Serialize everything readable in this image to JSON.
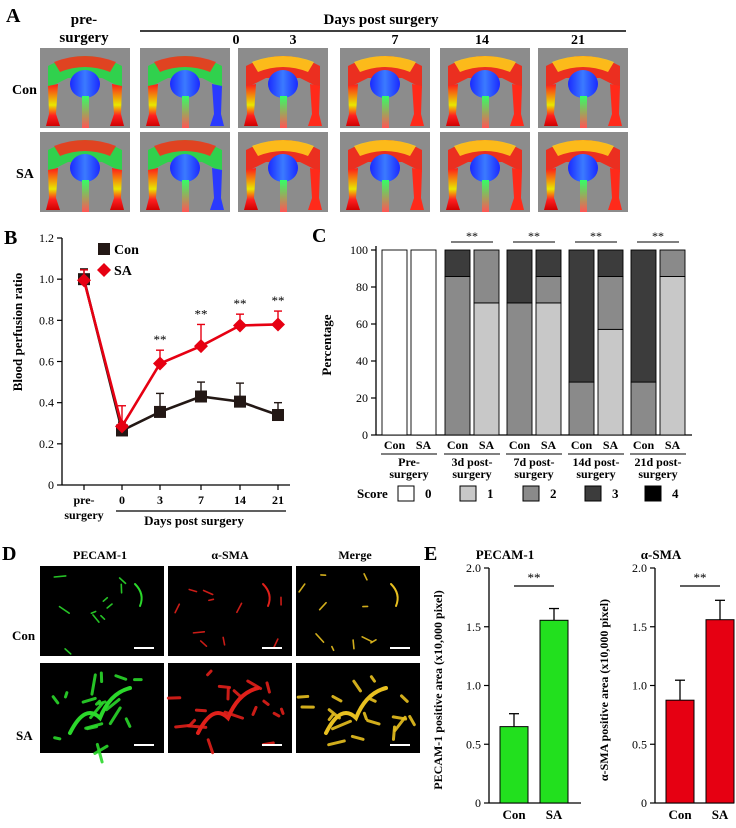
{
  "panel_labels": {
    "a": "A",
    "b": "B",
    "c": "C",
    "d": "D",
    "e": "E"
  },
  "panel_a": {
    "header_pre_line1": "pre-",
    "header_pre_line2": "surgery",
    "header_days": "Days post surgery",
    "days": [
      "0",
      "3",
      "7",
      "14",
      "21"
    ],
    "rows": [
      "Con",
      "SA"
    ]
  },
  "chart_data": [
    {
      "id": "B",
      "type": "line",
      "ylabel": "Blood perfusion ratio",
      "xlabel": "Days post surgery",
      "ylim": [
        0,
        1.2
      ],
      "yticks": [
        "0",
        "0.2",
        "0.4",
        "0.6",
        "0.8",
        "1.0",
        "1.2"
      ],
      "categories": [
        "pre-surgery",
        "0",
        "3",
        "7",
        "14",
        "21"
      ],
      "cat_line1": "pre-",
      "cat_line2": "surgery",
      "series": [
        {
          "name": "Con",
          "color": "#231815",
          "values": [
            1.0,
            0.265,
            0.355,
            0.43,
            0.405,
            0.34
          ],
          "err": [
            0.05,
            0.04,
            0.09,
            0.07,
            0.09,
            0.06
          ]
        },
        {
          "name": "SA",
          "color": "#e60012",
          "values": [
            0.995,
            0.285,
            0.59,
            0.675,
            0.775,
            0.78
          ],
          "err": [
            0.05,
            0.1,
            0.065,
            0.105,
            0.055,
            0.065
          ]
        }
      ],
      "annotations": [
        "**",
        "**",
        "**",
        "**"
      ],
      "legend": "top-right"
    },
    {
      "id": "C",
      "type": "bar",
      "ylabel": "Percentage",
      "ylim": [
        0,
        100
      ],
      "yticks": [
        "0",
        "20",
        "40",
        "60",
        "80",
        "100"
      ],
      "groups": [
        {
          "line1": "Pre-",
          "line2": "surgery",
          "bars": [
            {
              "label": "Con",
              "values": [
                100,
                0,
                0,
                0,
                0
              ]
            },
            {
              "label": "SA",
              "values": [
                100,
                0,
                0,
                0,
                0
              ]
            }
          ],
          "sig": ""
        },
        {
          "line1": "3d post-",
          "line2": "surgery",
          "bars": [
            {
              "label": "Con",
              "values": [
                0,
                0,
                85.7,
                14.3,
                0
              ]
            },
            {
              "label": "SA",
              "values": [
                0,
                71.4,
                28.6,
                0,
                0
              ]
            }
          ],
          "sig": "**"
        },
        {
          "line1": "7d post-",
          "line2": "surgery",
          "bars": [
            {
              "label": "Con",
              "values": [
                0,
                0,
                71.4,
                28.6,
                0
              ]
            },
            {
              "label": "SA",
              "values": [
                0,
                71.4,
                14.3,
                14.3,
                0
              ]
            }
          ],
          "sig": "**"
        },
        {
          "line1": "14d post-",
          "line2": "surgery",
          "bars": [
            {
              "label": "Con",
              "values": [
                0,
                0,
                28.6,
                71.4,
                0
              ]
            },
            {
              "label": "SA",
              "values": [
                0,
                57.1,
                28.6,
                14.3,
                0
              ]
            }
          ],
          "sig": "**"
        },
        {
          "line1": "21d post-",
          "line2": "surgery",
          "bars": [
            {
              "label": "Con",
              "values": [
                0,
                0,
                28.6,
                71.4,
                0
              ]
            },
            {
              "label": "SA",
              "values": [
                0,
                85.7,
                14.3,
                0,
                0
              ]
            }
          ],
          "sig": "**"
        }
      ],
      "score_label": "Score",
      "score_names": [
        "0",
        "1",
        "2",
        "3",
        "4"
      ],
      "score_colors": [
        "#ffffff",
        "#c8c8c8",
        "#8a8a8a",
        "#3c3c3c",
        "#000000"
      ],
      "legend": "bottom"
    },
    {
      "id": "E1",
      "type": "bar",
      "title": "PECAM-1",
      "ylabel": "PECAM-1 positive area (x10,000 pixel)",
      "ylim": [
        0,
        2.0
      ],
      "yticks": [
        "0",
        "0.5",
        "1.0",
        "1.5",
        "2.0"
      ],
      "categories": [
        "Con",
        "SA"
      ],
      "values": [
        0.65,
        1.555
      ],
      "err": [
        0.11,
        0.1
      ],
      "color": "#22e01e",
      "sig": "**"
    },
    {
      "id": "E2",
      "type": "bar",
      "title": "α-SMA",
      "ylabel": "α-SMA positive area (x10,000 pixel)",
      "ylim": [
        0,
        2.0
      ],
      "yticks": [
        "0",
        "0.5",
        "1.0",
        "1.5",
        "2.0"
      ],
      "categories": [
        "Con",
        "SA"
      ],
      "values": [
        0.875,
        1.56
      ],
      "err": [
        0.17,
        0.165
      ],
      "color": "#e60012",
      "sig": "**"
    }
  ],
  "panel_d": {
    "columns": [
      "PECAM-1",
      "α-SMA",
      "Merge"
    ],
    "rows": [
      "Con",
      "SA"
    ]
  }
}
